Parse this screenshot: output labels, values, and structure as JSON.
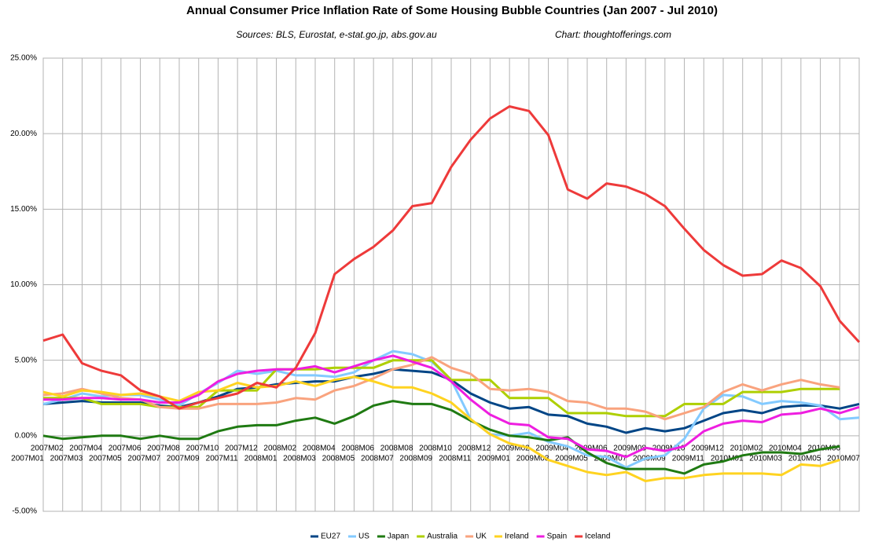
{
  "chart_data": {
    "type": "line",
    "title": "Annual Consumer Price Inflation Rate of Some Housing Bubble Countries (Jan 2007 - Jul 2010)",
    "subtitle": "Sources: BLS, Eurostat, e-stat.go.jp, abs.gov.au",
    "credit": "Chart: thoughtofferings.com",
    "categories": [
      "2007M01",
      "2007M02",
      "2007M03",
      "2007M04",
      "2007M05",
      "2007M06",
      "2007M07",
      "2007M08",
      "2007M09",
      "2007M10",
      "2007M11",
      "2007M12",
      "2008M01",
      "2008M02",
      "2008M03",
      "2008M04",
      "2008M05",
      "2008M06",
      "2008M07",
      "2008M08",
      "2008M09",
      "2008M10",
      "2008M11",
      "2008M12",
      "2009M01",
      "2009M02",
      "2009M03",
      "2009M04",
      "2009M05",
      "2009M06",
      "2009M07",
      "2009M08",
      "2009M09",
      "2009M10",
      "2009M11",
      "2009M12",
      "2010M01",
      "2010M02",
      "2010M03",
      "2010M04",
      "2010M05",
      "2010M06",
      "2010M07"
    ],
    "series": [
      {
        "name": "EU27",
        "color": "#004586",
        "values": [
          2.1,
          2.2,
          2.3,
          2.2,
          2.2,
          2.2,
          2.0,
          1.9,
          2.2,
          2.6,
          3.1,
          3.2,
          3.4,
          3.5,
          3.6,
          3.6,
          3.9,
          4.1,
          4.4,
          4.3,
          4.2,
          3.7,
          2.8,
          2.2,
          1.8,
          1.9,
          1.4,
          1.3,
          0.8,
          0.6,
          0.2,
          0.5,
          0.3,
          0.5,
          1.0,
          1.5,
          1.7,
          1.5,
          1.9,
          2.0,
          2.0,
          1.8,
          2.1
        ]
      },
      {
        "name": "US",
        "color": "#83caff",
        "values": [
          2.1,
          2.4,
          2.8,
          2.6,
          2.7,
          2.7,
          2.4,
          2.0,
          2.8,
          3.5,
          4.3,
          4.1,
          4.3,
          4.0,
          4.0,
          3.9,
          4.2,
          5.0,
          5.6,
          5.4,
          4.9,
          3.7,
          1.1,
          0.1,
          0.0,
          0.2,
          -0.4,
          -0.7,
          -1.3,
          -1.4,
          -2.1,
          -1.5,
          -1.3,
          -0.2,
          1.8,
          2.7,
          2.6,
          2.1,
          2.3,
          2.2,
          2.0,
          1.1,
          1.2
        ]
      },
      {
        "name": "Japan",
        "color": "#1f7a12",
        "values": [
          0.0,
          -0.2,
          -0.1,
          0.0,
          0.0,
          -0.2,
          0.0,
          -0.2,
          -0.2,
          0.3,
          0.6,
          0.7,
          0.7,
          1.0,
          1.2,
          0.8,
          1.3,
          2.0,
          2.3,
          2.1,
          2.1,
          1.7,
          1.0,
          0.4,
          0.0,
          -0.1,
          -0.3,
          -0.1,
          -1.1,
          -1.8,
          -2.2,
          -2.2,
          -2.2,
          -2.5,
          -1.9,
          -1.7,
          -1.3,
          -1.1,
          -1.1,
          -1.2,
          -0.9,
          -0.7,
          null
        ]
      },
      {
        "name": "Australia",
        "color": "#aecf00",
        "values": [
          2.5,
          2.5,
          2.5,
          2.1,
          2.1,
          2.1,
          1.9,
          1.9,
          1.9,
          3.0,
          3.0,
          3.0,
          4.4,
          4.4,
          4.4,
          4.5,
          4.5,
          4.5,
          5.0,
          5.0,
          5.0,
          3.7,
          3.7,
          3.7,
          2.5,
          2.5,
          2.5,
          1.5,
          1.5,
          1.5,
          1.3,
          1.3,
          1.3,
          2.1,
          2.1,
          2.1,
          2.9,
          2.9,
          2.9,
          3.1,
          3.1,
          3.1,
          null
        ]
      },
      {
        "name": "UK",
        "color": "#f9a37e",
        "values": [
          2.7,
          2.8,
          3.1,
          2.8,
          2.5,
          2.4,
          1.9,
          1.8,
          1.8,
          2.1,
          2.1,
          2.1,
          2.2,
          2.5,
          2.4,
          3.0,
          3.3,
          3.8,
          4.4,
          4.7,
          5.2,
          4.5,
          4.1,
          3.1,
          3.0,
          3.1,
          2.9,
          2.3,
          2.2,
          1.8,
          1.8,
          1.6,
          1.1,
          1.5,
          1.9,
          2.9,
          3.4,
          3.0,
          3.4,
          3.7,
          3.4,
          3.2,
          null
        ]
      },
      {
        "name": "Ireland",
        "color": "#ffd320",
        "values": [
          2.9,
          2.6,
          3.0,
          2.9,
          2.7,
          2.8,
          2.6,
          2.3,
          2.9,
          3.0,
          3.5,
          3.2,
          3.3,
          3.6,
          3.3,
          3.7,
          3.9,
          3.6,
          3.2,
          3.2,
          2.8,
          2.2,
          1.1,
          0.1,
          -0.5,
          -0.8,
          -1.6,
          -2.0,
          -2.4,
          -2.6,
          -2.4,
          -3.0,
          -2.8,
          -2.8,
          -2.6,
          -2.5,
          -2.5,
          -2.5,
          -2.6,
          -1.9,
          -2.0,
          -1.6,
          null
        ]
      },
      {
        "name": "Spain",
        "color": "#ee1ee0",
        "values": [
          2.4,
          2.4,
          2.5,
          2.5,
          2.4,
          2.4,
          2.2,
          2.2,
          2.7,
          3.6,
          4.1,
          4.3,
          4.4,
          4.4,
          4.6,
          4.2,
          4.6,
          5.0,
          5.3,
          4.9,
          4.5,
          3.6,
          2.4,
          1.4,
          0.8,
          0.7,
          -0.1,
          -0.2,
          -0.9,
          -1.0,
          -1.4,
          -0.8,
          -1.0,
          -0.7,
          0.3,
          0.8,
          1.0,
          0.9,
          1.4,
          1.5,
          1.8,
          1.5,
          1.9
        ]
      },
      {
        "name": "Iceland",
        "color": "#ee3a3a",
        "values": [
          6.3,
          6.7,
          4.8,
          4.3,
          4.0,
          3.0,
          2.6,
          1.8,
          2.2,
          2.5,
          2.8,
          3.5,
          3.2,
          4.5,
          6.8,
          10.7,
          11.7,
          12.5,
          13.6,
          15.2,
          15.4,
          17.8,
          19.6,
          21.0,
          21.8,
          21.5,
          19.9,
          16.3,
          15.7,
          16.7,
          16.5,
          16.0,
          15.2,
          13.7,
          12.3,
          11.3,
          10.6,
          10.7,
          11.6,
          11.1,
          9.9,
          7.6,
          6.2
        ]
      }
    ],
    "ylim": [
      -5,
      25
    ],
    "yticks": [
      {
        "value": -5,
        "label": "-5.00%"
      },
      {
        "value": 0,
        "label": "0.00%"
      },
      {
        "value": 5,
        "label": "5.00%"
      },
      {
        "value": 10,
        "label": "10.00%"
      },
      {
        "value": 15,
        "label": "15.00%"
      },
      {
        "value": 20,
        "label": "20.00%"
      },
      {
        "value": 25,
        "label": "25.00%"
      }
    ],
    "grid": true,
    "legend": "bottom"
  }
}
